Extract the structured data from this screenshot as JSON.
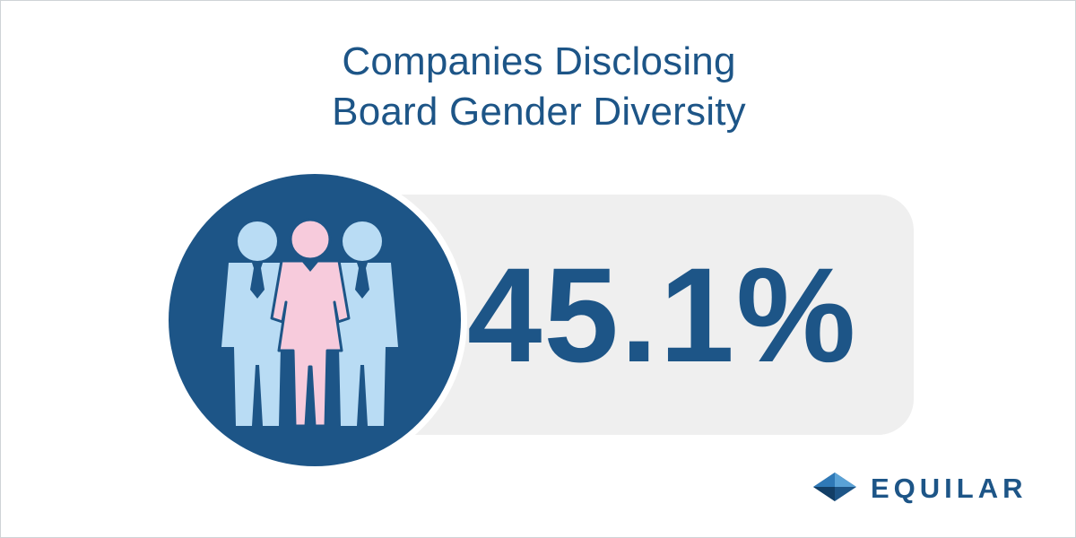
{
  "header": {
    "title_line1": "Companies Disclosing",
    "title_line2": "Board Gender Diversity"
  },
  "stat": {
    "value": "45.1%"
  },
  "icons": {
    "people": "board-members-icon",
    "logo": "equilar-logo-icon"
  },
  "brand": {
    "name": "EQUILAR"
  },
  "colors": {
    "primary": "#1d5587",
    "man": "#b9dcf4",
    "woman": "#f7cbdc",
    "pill": "#efefef"
  }
}
